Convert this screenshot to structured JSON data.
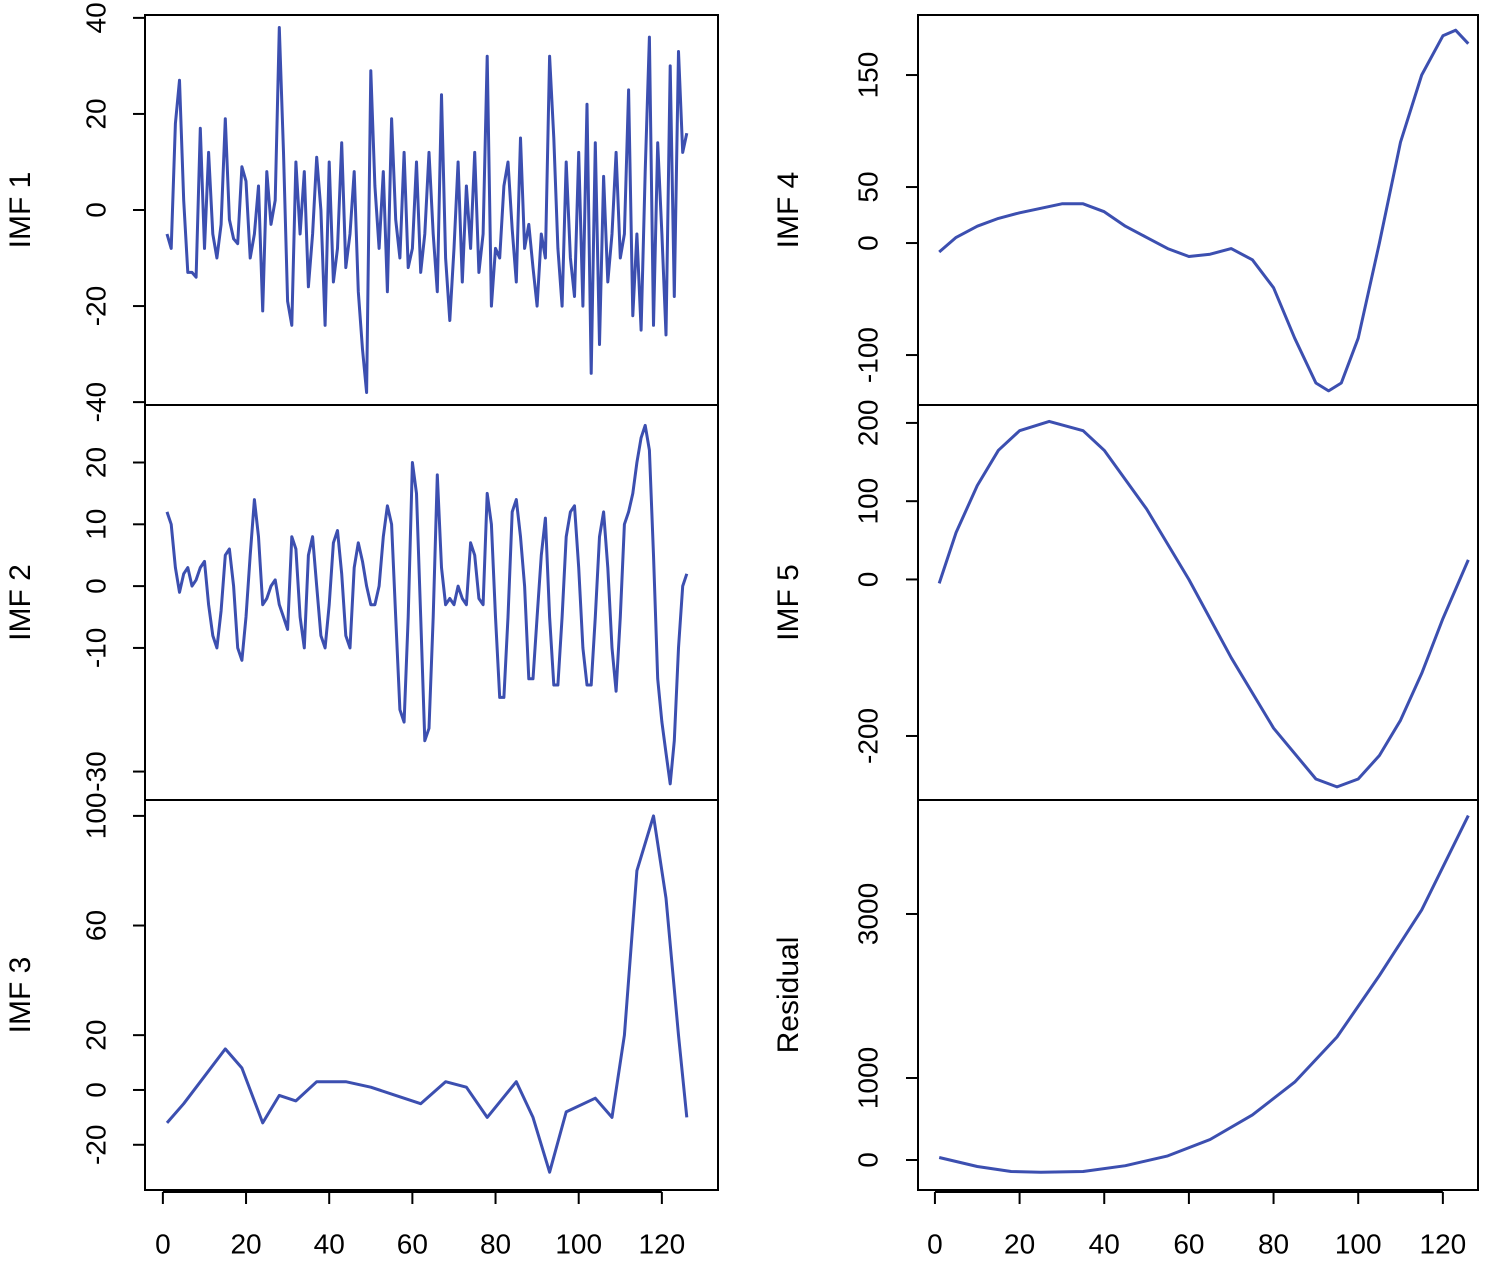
{
  "chart_data": [
    {
      "type": "line",
      "ylabel": "IMF 1",
      "color": "#3c4fb0",
      "x": [
        1,
        2,
        3,
        4,
        5,
        6,
        7,
        8,
        9,
        10,
        11,
        12,
        13,
        14,
        15,
        16,
        17,
        18,
        19,
        20,
        21,
        22,
        23,
        24,
        25,
        26,
        27,
        28,
        29,
        30,
        31,
        32,
        33,
        34,
        35,
        36,
        37,
        38,
        39,
        40,
        41,
        42,
        43,
        44,
        45,
        46,
        47,
        48,
        49,
        50,
        51,
        52,
        53,
        54,
        55,
        56,
        57,
        58,
        59,
        60,
        61,
        62,
        63,
        64,
        65,
        66,
        67,
        68,
        69,
        70,
        71,
        72,
        73,
        74,
        75,
        76,
        77,
        78,
        79,
        80,
        81,
        82,
        83,
        84,
        85,
        86,
        87,
        88,
        89,
        90,
        91,
        92,
        93,
        94,
        95,
        96,
        97,
        98,
        99,
        100,
        101,
        102,
        103,
        104,
        105,
        106,
        107,
        108,
        109,
        110,
        111,
        112,
        113,
        114,
        115,
        116,
        117,
        118,
        119,
        120,
        121,
        122,
        123,
        124,
        125,
        126
      ],
      "values": [
        -5,
        -8,
        18,
        27,
        2,
        -13,
        -13,
        -14,
        17,
        -8,
        12,
        -5,
        -10,
        -3,
        19,
        -2,
        -6,
        -7,
        9,
        6,
        -10,
        -5,
        5,
        -21,
        8,
        -3,
        2,
        38,
        12,
        -19,
        -24,
        10,
        -5,
        8,
        -16,
        -5,
        11,
        0,
        -24,
        10,
        -15,
        -8,
        14,
        -12,
        -5,
        8,
        -17,
        -29,
        -38,
        29,
        5,
        -8,
        8,
        -17,
        19,
        -2,
        -10,
        12,
        -12,
        -8,
        10,
        -13,
        -5,
        12,
        -5,
        -17,
        24,
        -10,
        -23,
        -8,
        10,
        -15,
        5,
        -8,
        12,
        -13,
        -5,
        32,
        -20,
        -8,
        -10,
        5,
        10,
        -4,
        -15,
        15,
        -8,
        -3,
        -12,
        -20,
        -5,
        -10,
        32,
        15,
        -8,
        -20,
        10,
        -10,
        -18,
        12,
        -20,
        22,
        -34,
        14,
        -28,
        7,
        -15,
        -5,
        12,
        -10,
        -5,
        25,
        -22,
        -5,
        -25,
        8,
        36,
        -24,
        14,
        -5,
        -26,
        30,
        -18,
        33,
        12,
        16
      ],
      "xlim": [
        -4.3,
        133.5
      ],
      "ylim": [
        -40.6,
        40.6
      ],
      "yticks": [
        -40,
        -20,
        0,
        20,
        40
      ]
    },
    {
      "type": "line",
      "ylabel": "IMF 2",
      "color": "#3c4fb0",
      "x": [
        1,
        2,
        3,
        4,
        5,
        6,
        7,
        8,
        9,
        10,
        11,
        12,
        13,
        14,
        15,
        16,
        17,
        18,
        19,
        20,
        21,
        22,
        23,
        24,
        25,
        26,
        27,
        28,
        29,
        30,
        31,
        32,
        33,
        34,
        35,
        36,
        37,
        38,
        39,
        40,
        41,
        42,
        43,
        44,
        45,
        46,
        47,
        48,
        49,
        50,
        51,
        52,
        53,
        54,
        55,
        56,
        57,
        58,
        59,
        60,
        61,
        62,
        63,
        64,
        65,
        66,
        67,
        68,
        69,
        70,
        71,
        72,
        73,
        74,
        75,
        76,
        77,
        78,
        79,
        80,
        81,
        82,
        83,
        84,
        85,
        86,
        87,
        88,
        89,
        90,
        91,
        92,
        93,
        94,
        95,
        96,
        97,
        98,
        99,
        100,
        101,
        102,
        103,
        104,
        105,
        106,
        107,
        108,
        109,
        110,
        111,
        112,
        113,
        114,
        115,
        116,
        117,
        118,
        119,
        120,
        121,
        122,
        123,
        124,
        125,
        126
      ],
      "values": [
        12,
        10,
        3,
        -1,
        2,
        3,
        0,
        1,
        3,
        4,
        -3,
        -8,
        -10,
        -4,
        5,
        6,
        0,
        -10,
        -12,
        -5,
        5,
        14,
        8,
        -3,
        -2,
        0,
        1,
        -3,
        -5,
        -7,
        8,
        6,
        -5,
        -10,
        5,
        8,
        0,
        -8,
        -10,
        -3,
        7,
        9,
        2,
        -8,
        -10,
        3,
        7,
        4,
        0,
        -3,
        -3,
        0,
        8,
        13,
        10,
        -5,
        -20,
        -22,
        -5,
        20,
        15,
        -5,
        -25,
        -23,
        -5,
        18,
        3,
        -3,
        -2,
        -3,
        0,
        -2,
        -3,
        7,
        5,
        -2,
        -3,
        15,
        10,
        -5,
        -18,
        -18,
        -5,
        12,
        14,
        8,
        0,
        -15,
        -15,
        -5,
        5,
        11,
        -5,
        -16,
        -16,
        -5,
        8,
        12,
        13,
        3,
        -10,
        -16,
        -16,
        -5,
        8,
        12,
        3,
        -10,
        -17,
        -5,
        10,
        12,
        15,
        20,
        24,
        26,
        22,
        5,
        -15,
        -22,
        -27,
        -32,
        -25,
        -10,
        0,
        2
      ],
      "xlim": [
        -4.3,
        133.5
      ],
      "ylim": [
        -34.6,
        29.3
      ],
      "yticks": [
        -30,
        -10,
        0,
        10,
        20
      ]
    },
    {
      "type": "line",
      "ylabel": "IMF 3",
      "color": "#3c4fb0",
      "x": [
        1,
        5,
        10,
        15,
        19,
        24,
        28,
        32,
        37,
        44,
        50,
        56,
        62,
        68,
        73,
        78,
        85,
        89,
        93,
        97,
        104,
        108,
        111,
        114,
        118,
        121,
        124,
        126
      ],
      "values": [
        -12,
        -5,
        5,
        15,
        8,
        -12,
        -2,
        -4,
        3,
        3,
        1,
        -2,
        -5,
        3,
        1,
        -10,
        3,
        -10,
        -30,
        -8,
        -3,
        -10,
        20,
        80,
        100,
        70,
        20,
        -10
      ],
      "xlim": [
        -4.3,
        133.5
      ],
      "ylim": [
        -36.5,
        105.8
      ],
      "yticks": [
        -20,
        0,
        20,
        60,
        100
      ],
      "xticks": [
        0,
        20,
        40,
        60,
        80,
        100,
        120
      ]
    },
    {
      "type": "line",
      "ylabel": "IMF 4",
      "color": "#3c4fb0",
      "x": [
        1,
        5,
        10,
        15,
        20,
        25,
        30,
        35,
        40,
        45,
        50,
        55,
        60,
        65,
        70,
        75,
        80,
        85,
        90,
        93,
        96,
        100,
        105,
        110,
        115,
        120,
        123,
        126
      ],
      "values": [
        -8,
        5,
        15,
        22,
        27,
        31,
        35,
        35,
        28,
        15,
        5,
        -5,
        -12,
        -10,
        -5,
        -15,
        -40,
        -85,
        -125,
        -132,
        -125,
        -85,
        0,
        90,
        150,
        185,
        190,
        178
      ],
      "xlim": [
        -4.0,
        128.3
      ],
      "ylim": [
        -144.6,
        203.6
      ],
      "yticks": [
        -100,
        0,
        50,
        150
      ]
    },
    {
      "type": "line",
      "ylabel": "IMF 5",
      "color": "#3c4fb0",
      "x": [
        1,
        5,
        10,
        15,
        20,
        27,
        35,
        40,
        50,
        60,
        70,
        80,
        90,
        95,
        100,
        105,
        110,
        115,
        120,
        126
      ],
      "values": [
        -5,
        60,
        120,
        165,
        190,
        202,
        190,
        165,
        90,
        0,
        -100,
        -190,
        -255,
        -265,
        -255,
        -225,
        -180,
        -120,
        -50,
        25
      ],
      "xlim": [
        -4.0,
        128.3
      ],
      "ylim": [
        -281.8,
        222.9
      ],
      "yticks": [
        -200,
        0,
        100,
        200
      ]
    },
    {
      "type": "line",
      "ylabel": "Residual",
      "color": "#3c4fb0",
      "x": [
        1,
        10,
        18,
        25,
        35,
        45,
        55,
        65,
        75,
        85,
        95,
        105,
        115,
        126
      ],
      "values": [
        30,
        -80,
        -140,
        -150,
        -140,
        -70,
        50,
        250,
        550,
        950,
        1500,
        2250,
        3050,
        4200
      ],
      "xlim": [
        -4.0,
        128.3
      ],
      "ylim": [
        -366,
        4390
      ],
      "yticks": [
        0,
        1000,
        3000
      ],
      "xticks": [
        0,
        20,
        40,
        60,
        80,
        100,
        120
      ]
    }
  ]
}
